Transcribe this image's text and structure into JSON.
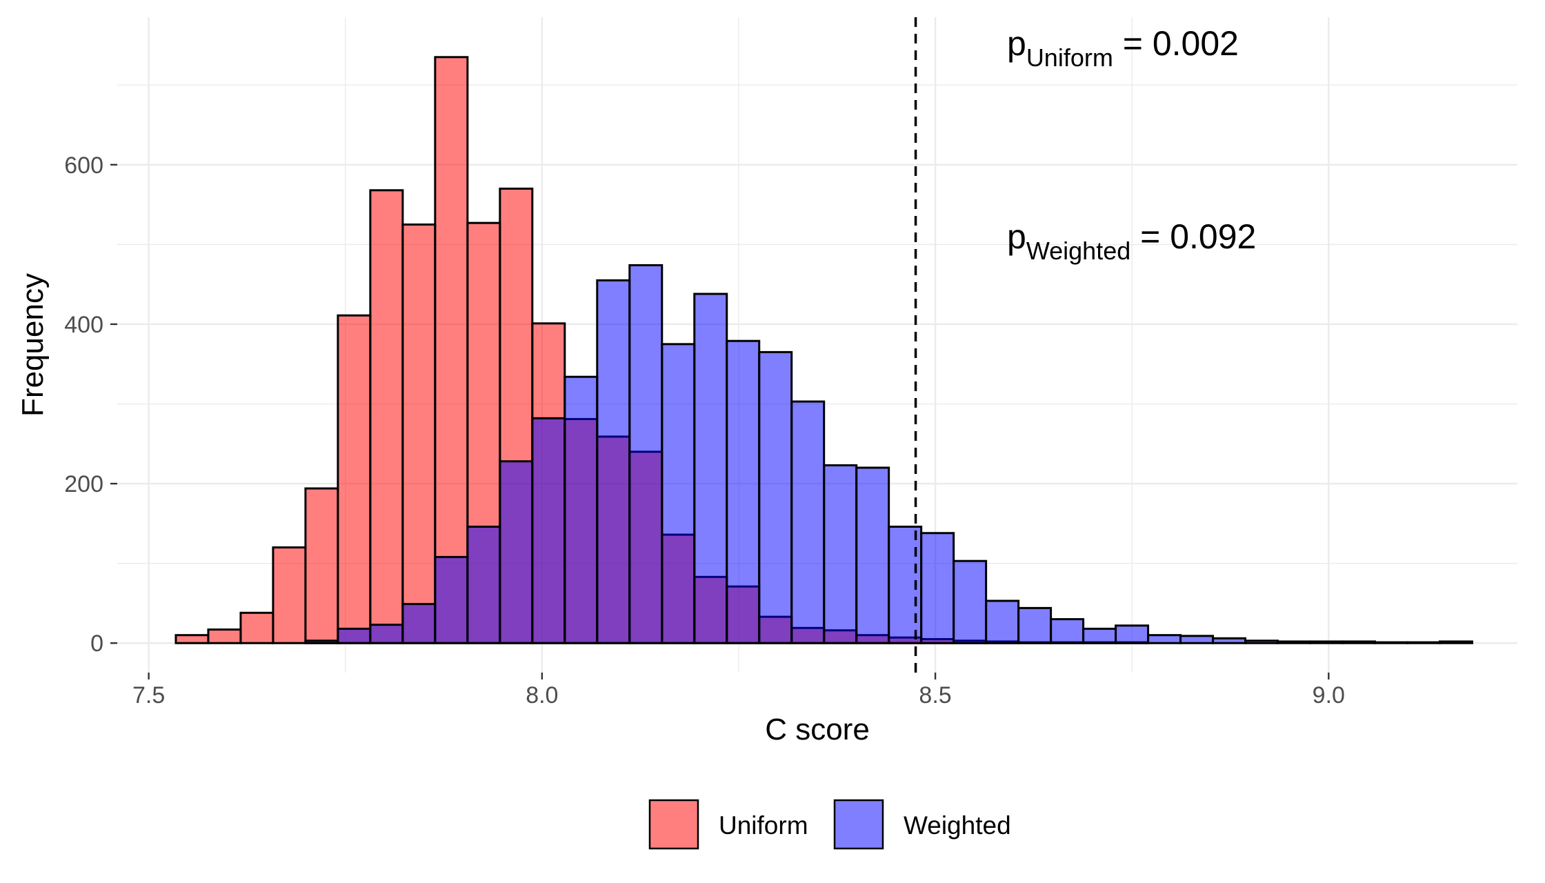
{
  "chart_data": {
    "type": "bar",
    "xlabel": "C score",
    "ylabel": "Frequency",
    "xlim": [
      7.46,
      9.24
    ],
    "ylim": [
      -37,
      785
    ],
    "x_ticks": [
      7.5,
      8.0,
      8.5,
      9.0
    ],
    "x_tick_labels": [
      "7.5",
      "8.0",
      "8.5",
      "9.0"
    ],
    "y_ticks": [
      0,
      200,
      400,
      600
    ],
    "y_tick_labels": [
      "0",
      "200",
      "400",
      "600"
    ],
    "grid": true,
    "legend_position": "bottom",
    "bin_width": 0.0412,
    "bin_start": 7.5345,
    "series": [
      {
        "name": "Uniform",
        "color": "#ff0000",
        "alpha": 0.5,
        "values": [
          10,
          17,
          38,
          120,
          194,
          411,
          568,
          525,
          735,
          527,
          570,
          401,
          281,
          259,
          240,
          136,
          83,
          71,
          33,
          19,
          16,
          10,
          7,
          5,
          3,
          2,
          1,
          1,
          1,
          1,
          0,
          0,
          0,
          0,
          0,
          0,
          0,
          0,
          0,
          0
        ]
      },
      {
        "name": "Weighted",
        "color": "#0000ff",
        "alpha": 0.5,
        "values": [
          0,
          0,
          0,
          0,
          3,
          18,
          23,
          49,
          108,
          146,
          228,
          282,
          334,
          455,
          474,
          375,
          438,
          379,
          365,
          303,
          223,
          220,
          146,
          138,
          103,
          53,
          44,
          30,
          18,
          22,
          10,
          9,
          6,
          3,
          2,
          2,
          2,
          1,
          1,
          2
        ]
      }
    ],
    "reference_line": {
      "x": 8.475,
      "style": "dashed"
    },
    "annotations": [
      {
        "main": "p",
        "sub": "Uniform",
        "tail": " = 0.002"
      },
      {
        "main": "p",
        "sub": "Weighted",
        "tail": " = 0.092"
      }
    ]
  }
}
